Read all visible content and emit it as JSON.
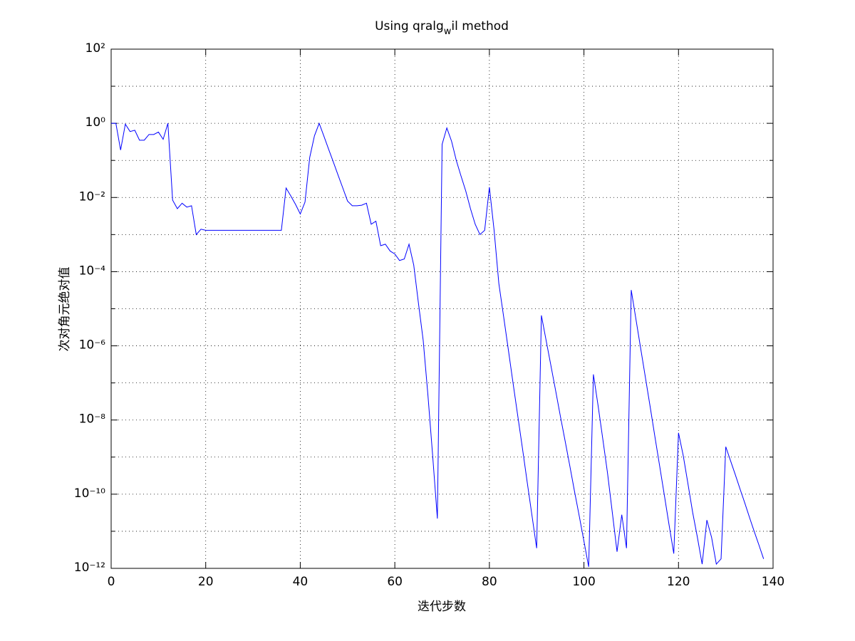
{
  "chart_data": {
    "type": "line",
    "title": [
      "Using qralg",
      "w",
      "il method"
    ],
    "x_label": "迭代步数",
    "y_label": "次对角元绝对值",
    "log_y": true,
    "grid": true,
    "xlim": [
      0,
      140
    ],
    "xticks": [
      0,
      20,
      40,
      60,
      80,
      100,
      120,
      140
    ],
    "ylim": [
      1e-12,
      100
    ],
    "yticks": [
      {
        "value": 1e-12,
        "label": "10⁻¹²"
      },
      {
        "value": 1e-10,
        "label": "10⁻¹⁰"
      },
      {
        "value": 1e-08,
        "label": "10⁻⁸"
      },
      {
        "value": 1e-06,
        "label": "10⁻⁶"
      },
      {
        "value": 0.0001,
        "label": "10⁻⁴"
      },
      {
        "value": 0.01,
        "label": "10⁻²"
      },
      {
        "value": 1,
        "label": "10⁰"
      },
      {
        "value": 100,
        "label": "10²"
      }
    ],
    "yminorticks": [
      1e-11,
      1e-09,
      1e-07,
      1e-05,
      0.001,
      0.1,
      10
    ],
    "series": [
      {
        "color": "#0000ff",
        "x": [
          0,
          1,
          2,
          3,
          4,
          5,
          6,
          7,
          8,
          9,
          10,
          11,
          12,
          13,
          14,
          15,
          16,
          17,
          18,
          19,
          20,
          21,
          22,
          23,
          24,
          25,
          26,
          27,
          28,
          29,
          30,
          31,
          32,
          33,
          34,
          35,
          36,
          37,
          38,
          39,
          40,
          41,
          42,
          43,
          44,
          45,
          46,
          47,
          48,
          49,
          50,
          51,
          52,
          53,
          54,
          55,
          56,
          57,
          58,
          59,
          60,
          61,
          62,
          63,
          64,
          65,
          66,
          67,
          68,
          69,
          70,
          71,
          72,
          73,
          74,
          75,
          76,
          77,
          78,
          79,
          80,
          81,
          82,
          83,
          84,
          85,
          86,
          87,
          88,
          89,
          90,
          91,
          92,
          93,
          94,
          95,
          96,
          97,
          98,
          99,
          100,
          101,
          102,
          103,
          104,
          105,
          106,
          107,
          108,
          109,
          110,
          111,
          112,
          113,
          114,
          115,
          116,
          117,
          118,
          119,
          120,
          121,
          122,
          123,
          124,
          125,
          126,
          127,
          128,
          129,
          130,
          131,
          132,
          133,
          134,
          135,
          136,
          137,
          138
        ],
        "values": [
          1.0,
          1.0,
          0.19,
          0.95,
          0.6,
          0.65,
          0.35,
          0.35,
          0.5,
          0.5,
          0.58,
          0.37,
          1.0,
          0.0085,
          0.005,
          0.007,
          0.0055,
          0.006,
          0.001,
          0.0014,
          0.0013,
          0.0013,
          0.0013,
          0.0013,
          0.0013,
          0.0013,
          0.0013,
          0.0013,
          0.0013,
          0.0013,
          0.0013,
          0.0013,
          0.0013,
          0.0013,
          0.0013,
          0.0013,
          0.0013,
          0.018,
          0.011,
          0.0065,
          0.0036,
          0.0075,
          0.12,
          0.46,
          1.0,
          0.45,
          0.2,
          0.09,
          0.04,
          0.018,
          0.008,
          0.006,
          0.006,
          0.0062,
          0.007,
          0.0019,
          0.0023,
          0.0005,
          0.00055,
          0.00036,
          0.0003,
          0.0002,
          0.00022,
          0.00055,
          0.00015,
          1.4e-05,
          1.4e-06,
          4.7e-08,
          1.1e-09,
          2.2e-11,
          0.27,
          0.75,
          0.33,
          0.1,
          0.038,
          0.015,
          0.005,
          0.0019,
          0.001,
          0.0013,
          0.019,
          0.0013,
          4.8e-05,
          6.3e-06,
          8e-07,
          1e-07,
          1.3e-08,
          1.7e-09,
          2.1e-10,
          2.7e-11,
          3.5e-12,
          6.6e-06,
          1.4e-06,
          3e-07,
          6.3e-08,
          1.3e-08,
          2.8e-09,
          5.9e-10,
          1.2e-10,
          2.6e-11,
          5.4e-12,
          1.1e-12,
          1.7e-07,
          2.4e-08,
          3e-09,
          3.6e-10,
          3.2e-11,
          2.8e-12,
          2.8e-11,
          3.5e-12,
          3.2e-05,
          5.2e-06,
          8.5e-07,
          1.4e-07,
          2.3e-08,
          3.6e-09,
          5.9e-10,
          9.5e-11,
          1.5e-11,
          2.5e-12,
          4.5e-09,
          1.1e-09,
          1.9e-10,
          3.2e-11,
          6.8e-12,
          1.3e-12,
          2e-11,
          6.8e-12,
          1.3e-12,
          1.8e-12,
          1.9e-09,
          8e-10,
          3.4e-10,
          1.4e-10,
          5.9e-11,
          2.4e-11,
          1e-11,
          4.3e-12,
          1.8e-12
        ]
      }
    ]
  }
}
